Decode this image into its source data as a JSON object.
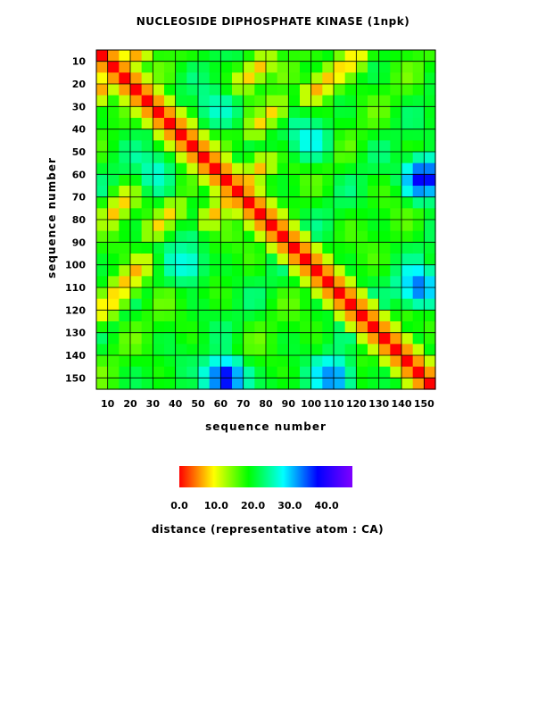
{
  "chart_data": {
    "type": "heatmap",
    "title": "NUCLEOSIDE DIPHOSPHATE KINASE (1npk)",
    "xlabel": "sequence number",
    "ylabel": "sequence number",
    "x_range": [
      5,
      155
    ],
    "y_range": [
      5,
      155
    ],
    "x_ticks": [
      "10",
      "20",
      "30",
      "40",
      "50",
      "60",
      "70",
      "80",
      "90",
      "100",
      "110",
      "120",
      "130",
      "140",
      "150"
    ],
    "y_ticks": [
      "10",
      "20",
      "30",
      "40",
      "50",
      "60",
      "70",
      "80",
      "90",
      "100",
      "110",
      "120",
      "130",
      "140",
      "150"
    ],
    "colorbar": {
      "title": "distance (representative atom : CA)",
      "min": 0.0,
      "max": 47.0,
      "tick_labels": [
        "0.0",
        "10.0",
        "20.0",
        "30.0",
        "40.0"
      ],
      "colors": [
        "#ff0000",
        "#ffff00",
        "#00ff00",
        "#00ffff",
        "#0000ff",
        "#8000ff"
      ]
    },
    "grid": true,
    "contours": true,
    "features": [
      {
        "kind": "diagonal",
        "from": 5,
        "to": 155,
        "distance": 0
      },
      {
        "kind": "antidiagonal_band",
        "start": [
          20,
          8
        ],
        "end": [
          5,
          25
        ],
        "distance": 6
      },
      {
        "kind": "antidiagonal_band",
        "start": [
          80,
          10
        ],
        "end": [
          60,
          28
        ],
        "distance": 7
      },
      {
        "kind": "antidiagonal_band",
        "start": [
          120,
          8
        ],
        "end": [
          100,
          25
        ],
        "distance": 6
      },
      {
        "kind": "antidiagonal_band",
        "start": [
          80,
          55
        ],
        "end": [
          65,
          70
        ],
        "distance": 7
      },
      {
        "kind": "antidiagonal_band",
        "start": [
          40,
          75
        ],
        "end": [
          30,
          85
        ],
        "distance": 8
      },
      {
        "kind": "far_region",
        "center": [
          150,
          62
        ],
        "distance": 42
      },
      {
        "kind": "far_region",
        "center": [
          62,
          150
        ],
        "distance": 42
      },
      {
        "kind": "far_region",
        "center": [
          148,
          110
        ],
        "distance": 36
      },
      {
        "kind": "far_region",
        "center": [
          110,
          150
        ],
        "distance": 36
      },
      {
        "kind": "far_region",
        "center": [
          30,
          60
        ],
        "distance": 30
      },
      {
        "kind": "far_region",
        "center": [
          60,
          30
        ],
        "distance": 30
      },
      {
        "kind": "far_region",
        "center": [
          100,
          45
        ],
        "distance": 30
      },
      {
        "kind": "far_region",
        "center": [
          45,
          100
        ],
        "distance": 30
      }
    ]
  }
}
